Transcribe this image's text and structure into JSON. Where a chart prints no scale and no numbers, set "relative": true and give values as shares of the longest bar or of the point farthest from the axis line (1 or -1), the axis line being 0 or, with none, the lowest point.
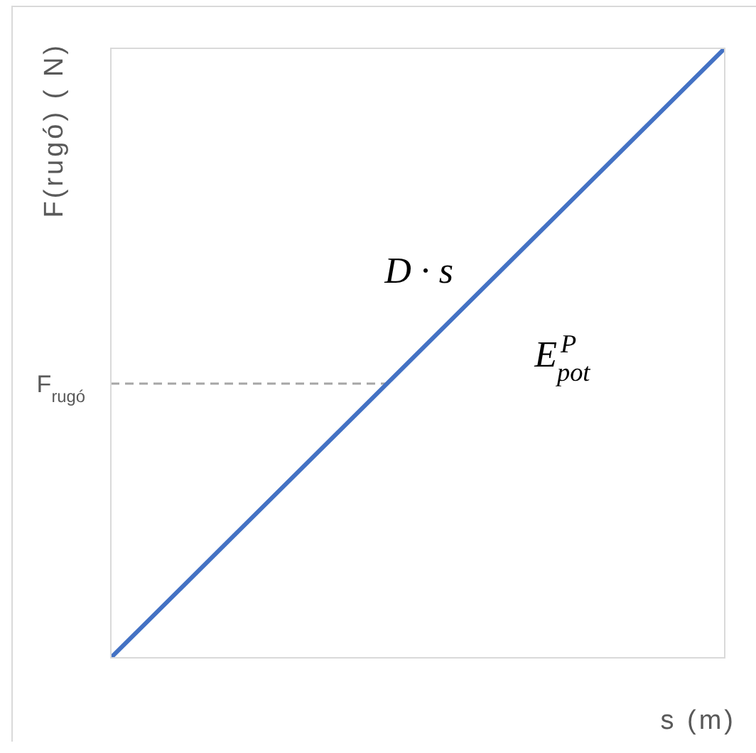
{
  "chart_data": {
    "type": "line",
    "xlabel": "s (m)",
    "ylabel": "F(rugó) ( N)",
    "categories": [
      null,
      null
    ],
    "relative": true,
    "values": [
      0,
      1
    ],
    "color": "#4472c4",
    "marker": "none",
    "line_style": "solid",
    "ref_lines": [
      {
        "axis": "y",
        "value": 0.45,
        "label": "F$_{rugó}$",
        "color": "#a6a6a6",
        "line_style": "dashed"
      }
    ],
    "annotations": [
      "D · s",
      "E$_{pot}$$^{P}$"
    ]
  }
}
